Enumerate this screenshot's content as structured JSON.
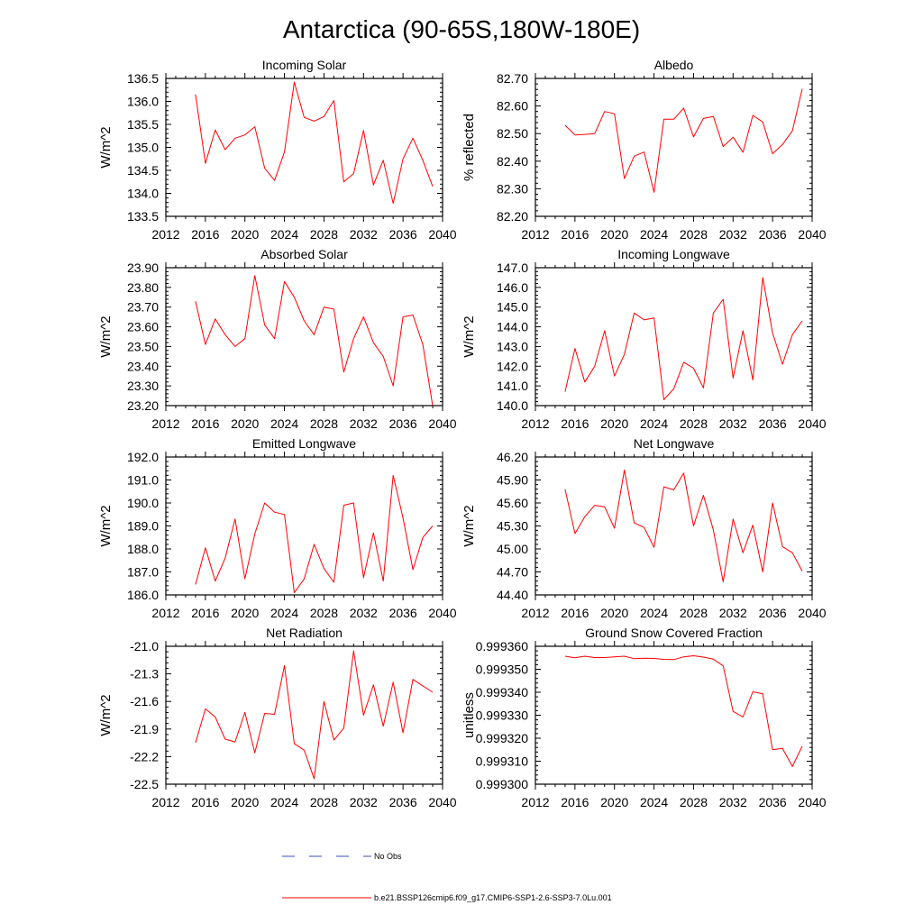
{
  "figure": {
    "title": "Antarctica (90-65S,180W-180E)",
    "legend": [
      {
        "label": "No Obs",
        "style": "dashed",
        "color": "#3b4cc0"
      },
      {
        "label": "b.e21.BSSP126cmip6.f09_g17.CMIP6-SSP1-2.6-SSP3-7.0Lu.001",
        "style": "solid",
        "color": "#ff0000"
      }
    ]
  },
  "chart_data": [
    {
      "type": "line",
      "title": "Incoming Solar",
      "ylabel": "W/m^2",
      "xlim": [
        2012,
        2040
      ],
      "xticks": [
        2012,
        2016,
        2020,
        2024,
        2028,
        2032,
        2036,
        2040
      ],
      "ylim": [
        133.5,
        136.5
      ],
      "yticks": [
        133.5,
        134.0,
        134.5,
        135.0,
        135.5,
        136.0,
        136.5
      ],
      "ydecimals": 1,
      "x": [
        2015,
        2016,
        2017,
        2018,
        2019,
        2020,
        2021,
        2022,
        2023,
        2024,
        2025,
        2026,
        2027,
        2028,
        2029,
        2030,
        2031,
        2032,
        2033,
        2034,
        2035,
        2036,
        2037,
        2038,
        2039
      ],
      "series": [
        {
          "values": [
            136.15,
            134.65,
            135.38,
            134.95,
            135.2,
            135.27,
            135.45,
            134.55,
            134.28,
            134.9,
            136.42,
            135.65,
            135.57,
            135.67,
            136.02,
            134.25,
            134.43,
            135.37,
            134.18,
            134.72,
            133.78,
            134.75,
            135.2,
            134.72,
            134.15
          ]
        }
      ]
    },
    {
      "type": "line",
      "title": "Albedo",
      "ylabel": "% reflected",
      "xlim": [
        2012,
        2040
      ],
      "xticks": [
        2012,
        2016,
        2020,
        2024,
        2028,
        2032,
        2036,
        2040
      ],
      "ylim": [
        82.2,
        82.7
      ],
      "yticks": [
        82.2,
        82.3,
        82.4,
        82.5,
        82.6,
        82.7
      ],
      "ydecimals": 2,
      "x": [
        2015,
        2016,
        2017,
        2018,
        2019,
        2020,
        2021,
        2022,
        2023,
        2024,
        2025,
        2026,
        2027,
        2028,
        2029,
        2030,
        2031,
        2032,
        2033,
        2034,
        2035,
        2036,
        2037,
        2038,
        2039
      ],
      "series": [
        {
          "values": [
            82.53,
            82.495,
            82.497,
            82.5,
            82.58,
            82.572,
            82.337,
            82.418,
            82.433,
            82.287,
            82.552,
            82.552,
            82.592,
            82.488,
            82.555,
            82.562,
            82.453,
            82.487,
            82.432,
            82.566,
            82.542,
            82.427,
            82.46,
            82.51,
            82.662
          ]
        }
      ]
    },
    {
      "type": "line",
      "title": "Absorbed Solar",
      "ylabel": "W/m^2",
      "xlim": [
        2012,
        2040
      ],
      "xticks": [
        2012,
        2016,
        2020,
        2024,
        2028,
        2032,
        2036,
        2040
      ],
      "ylim": [
        23.2,
        23.9
      ],
      "yticks": [
        23.2,
        23.3,
        23.4,
        23.5,
        23.6,
        23.7,
        23.8,
        23.9
      ],
      "ydecimals": 2,
      "x": [
        2015,
        2016,
        2017,
        2018,
        2019,
        2020,
        2021,
        2022,
        2023,
        2024,
        2025,
        2026,
        2027,
        2028,
        2029,
        2030,
        2031,
        2032,
        2033,
        2034,
        2035,
        2036,
        2037,
        2038,
        2039
      ],
      "series": [
        {
          "values": [
            23.73,
            23.51,
            23.64,
            23.56,
            23.5,
            23.54,
            23.86,
            23.61,
            23.54,
            23.83,
            23.75,
            23.63,
            23.56,
            23.7,
            23.69,
            23.37,
            23.54,
            23.65,
            23.52,
            23.45,
            23.3,
            23.65,
            23.66,
            23.51,
            23.2
          ]
        }
      ]
    },
    {
      "type": "line",
      "title": "Incoming Longwave",
      "ylabel": "W/m^2",
      "xlim": [
        2012,
        2040
      ],
      "xticks": [
        2012,
        2016,
        2020,
        2024,
        2028,
        2032,
        2036,
        2040
      ],
      "ylim": [
        140.0,
        147.0
      ],
      "yticks": [
        140.0,
        141.0,
        142.0,
        143.0,
        144.0,
        145.0,
        146.0,
        147.0
      ],
      "ydecimals": 1,
      "x": [
        2015,
        2016,
        2017,
        2018,
        2019,
        2020,
        2021,
        2022,
        2023,
        2024,
        2025,
        2026,
        2027,
        2028,
        2029,
        2030,
        2031,
        2032,
        2033,
        2034,
        2035,
        2036,
        2037,
        2038,
        2039
      ],
      "series": [
        {
          "values": [
            140.7,
            142.9,
            141.2,
            142.0,
            143.8,
            141.5,
            142.6,
            144.7,
            144.35,
            144.45,
            140.3,
            140.85,
            142.2,
            141.9,
            140.9,
            144.7,
            145.4,
            141.4,
            143.8,
            141.3,
            146.5,
            143.7,
            142.1,
            143.6,
            144.3
          ]
        }
      ]
    },
    {
      "type": "line",
      "title": "Emitted Longwave",
      "ylabel": "W/m^2",
      "xlim": [
        2012,
        2040
      ],
      "xticks": [
        2012,
        2016,
        2020,
        2024,
        2028,
        2032,
        2036,
        2040
      ],
      "ylim": [
        186.0,
        192.0
      ],
      "yticks": [
        186.0,
        187.0,
        188.0,
        189.0,
        190.0,
        191.0,
        192.0
      ],
      "ydecimals": 1,
      "x": [
        2015,
        2016,
        2017,
        2018,
        2019,
        2020,
        2021,
        2022,
        2023,
        2024,
        2025,
        2026,
        2027,
        2028,
        2029,
        2030,
        2031,
        2032,
        2033,
        2034,
        2035,
        2036,
        2037,
        2038,
        2039
      ],
      "series": [
        {
          "values": [
            186.45,
            188.05,
            186.6,
            187.6,
            189.3,
            186.7,
            188.65,
            190.0,
            189.6,
            189.5,
            186.1,
            186.7,
            188.2,
            187.15,
            186.55,
            189.9,
            190.0,
            186.75,
            188.7,
            186.6,
            191.2,
            189.35,
            187.1,
            188.5,
            189.0
          ]
        }
      ]
    },
    {
      "type": "line",
      "title": "Net Longwave",
      "ylabel": "W/m^2",
      "xlim": [
        2012,
        2040
      ],
      "xticks": [
        2012,
        2016,
        2020,
        2024,
        2028,
        2032,
        2036,
        2040
      ],
      "ylim": [
        44.4,
        46.2
      ],
      "yticks": [
        44.4,
        44.7,
        45.0,
        45.3,
        45.6,
        45.9,
        46.2
      ],
      "ydecimals": 2,
      "x": [
        2015,
        2016,
        2017,
        2018,
        2019,
        2020,
        2021,
        2022,
        2023,
        2024,
        2025,
        2026,
        2027,
        2028,
        2029,
        2030,
        2031,
        2032,
        2033,
        2034,
        2035,
        2036,
        2037,
        2038,
        2039
      ],
      "series": [
        {
          "values": [
            45.78,
            45.2,
            45.42,
            45.57,
            45.55,
            45.27,
            46.03,
            45.34,
            45.28,
            45.02,
            45.81,
            45.77,
            45.99,
            45.3,
            45.7,
            45.25,
            44.57,
            45.39,
            44.95,
            45.31,
            44.7,
            45.6,
            45.03,
            44.95,
            44.71
          ]
        }
      ]
    },
    {
      "type": "line",
      "title": "Net Radiation",
      "ylabel": "W/m^2",
      "xlim": [
        2012,
        2040
      ],
      "xticks": [
        2012,
        2016,
        2020,
        2024,
        2028,
        2032,
        2036,
        2040
      ],
      "ylim": [
        -22.5,
        -21.0
      ],
      "yticks": [
        -22.5,
        -22.2,
        -21.9,
        -21.6,
        -21.3,
        -21.0
      ],
      "ydecimals": 1,
      "x": [
        2015,
        2016,
        2017,
        2018,
        2019,
        2020,
        2021,
        2022,
        2023,
        2024,
        2025,
        2026,
        2027,
        2028,
        2029,
        2030,
        2031,
        2032,
        2033,
        2034,
        2035,
        2036,
        2037,
        2038,
        2039
      ],
      "series": [
        {
          "values": [
            -22.05,
            -21.68,
            -21.77,
            -22.01,
            -22.04,
            -21.72,
            -22.16,
            -21.73,
            -21.74,
            -21.21,
            -22.06,
            -22.13,
            -22.44,
            -21.6,
            -22.02,
            -21.89,
            -21.05,
            -21.75,
            -21.42,
            -21.87,
            -21.39,
            -21.94,
            -21.36,
            -21.43,
            -21.5
          ]
        }
      ]
    },
    {
      "type": "line",
      "title": "Ground Snow Covered Fraction",
      "ylabel": "unitless",
      "xlim": [
        2012,
        2040
      ],
      "xticks": [
        2012,
        2016,
        2020,
        2024,
        2028,
        2032,
        2036,
        2040
      ],
      "ylim": [
        0.9993,
        0.99936
      ],
      "yticks": [
        0.9993,
        0.99931,
        0.99932,
        0.99933,
        0.99934,
        0.99935,
        0.99936
      ],
      "ydecimals": 6,
      "x": [
        2015,
        2016,
        2017,
        2018,
        2019,
        2020,
        2021,
        2022,
        2023,
        2024,
        2025,
        2026,
        2027,
        2028,
        2029,
        2030,
        2031,
        2032,
        2033,
        2034,
        2035,
        2036,
        2037,
        2038,
        2039
      ],
      "series": [
        {
          "values": [
            0.9993557,
            0.999355,
            0.9993557,
            0.9993551,
            0.9993551,
            0.9993554,
            0.9993557,
            0.9993546,
            0.9993548,
            0.9993547,
            0.9993543,
            0.9993542,
            0.9993554,
            0.9993559,
            0.9993553,
            0.9993544,
            0.9993515,
            0.9993317,
            0.9993292,
            0.9993402,
            0.9993393,
            0.999315,
            0.9993156,
            0.9993077,
            0.9993165
          ]
        }
      ]
    }
  ]
}
